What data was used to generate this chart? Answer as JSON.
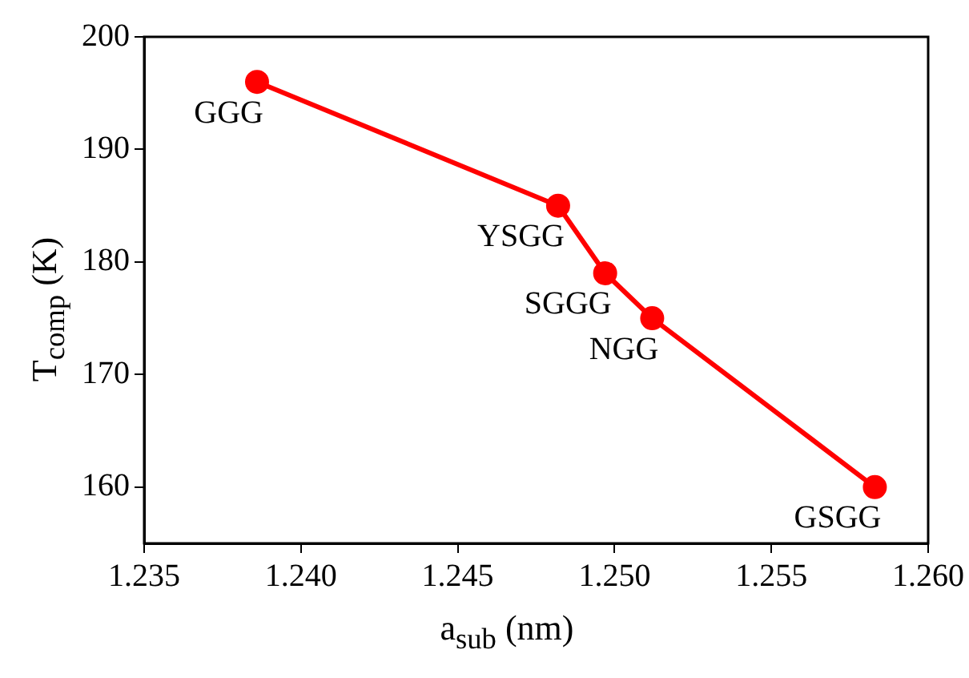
{
  "chart_data": {
    "type": "line",
    "xlabel": "a$_{sub}$ (nm)",
    "ylabel": "T$_{comp}$ (K)",
    "x": [
      1.2386,
      1.2482,
      1.2497,
      1.2512,
      1.2583
    ],
    "series": [
      {
        "color": "#ff0000",
        "values": [
          196,
          185,
          179,
          175,
          160
        ]
      }
    ],
    "xlim": [
      1.235,
      1.26
    ],
    "xticks": [
      {
        "value": 1.235,
        "label": "1.235"
      },
      {
        "value": 1.24,
        "label": "1.240"
      },
      {
        "value": 1.245,
        "label": "1.245"
      },
      {
        "value": 1.25,
        "label": "1.250"
      },
      {
        "value": 1.255,
        "label": "1.255"
      },
      {
        "value": 1.26,
        "label": "1.260"
      }
    ],
    "ylim": [
      155,
      200
    ],
    "yticks": [
      160,
      170,
      180,
      190,
      200
    ],
    "grid": false,
    "legend": false,
    "marker": "circle",
    "line_style": "solid",
    "annotations": [
      {
        "text": "GGG",
        "x": 1.2386,
        "y": 196
      },
      {
        "text": "YSGG",
        "x": 1.2482,
        "y": 185
      },
      {
        "text": "SGGG",
        "x": 1.2497,
        "y": 179
      },
      {
        "text": "NGG",
        "x": 1.2512,
        "y": 175
      },
      {
        "text": "GSGG",
        "x": 1.2583,
        "y": 160
      }
    ]
  }
}
